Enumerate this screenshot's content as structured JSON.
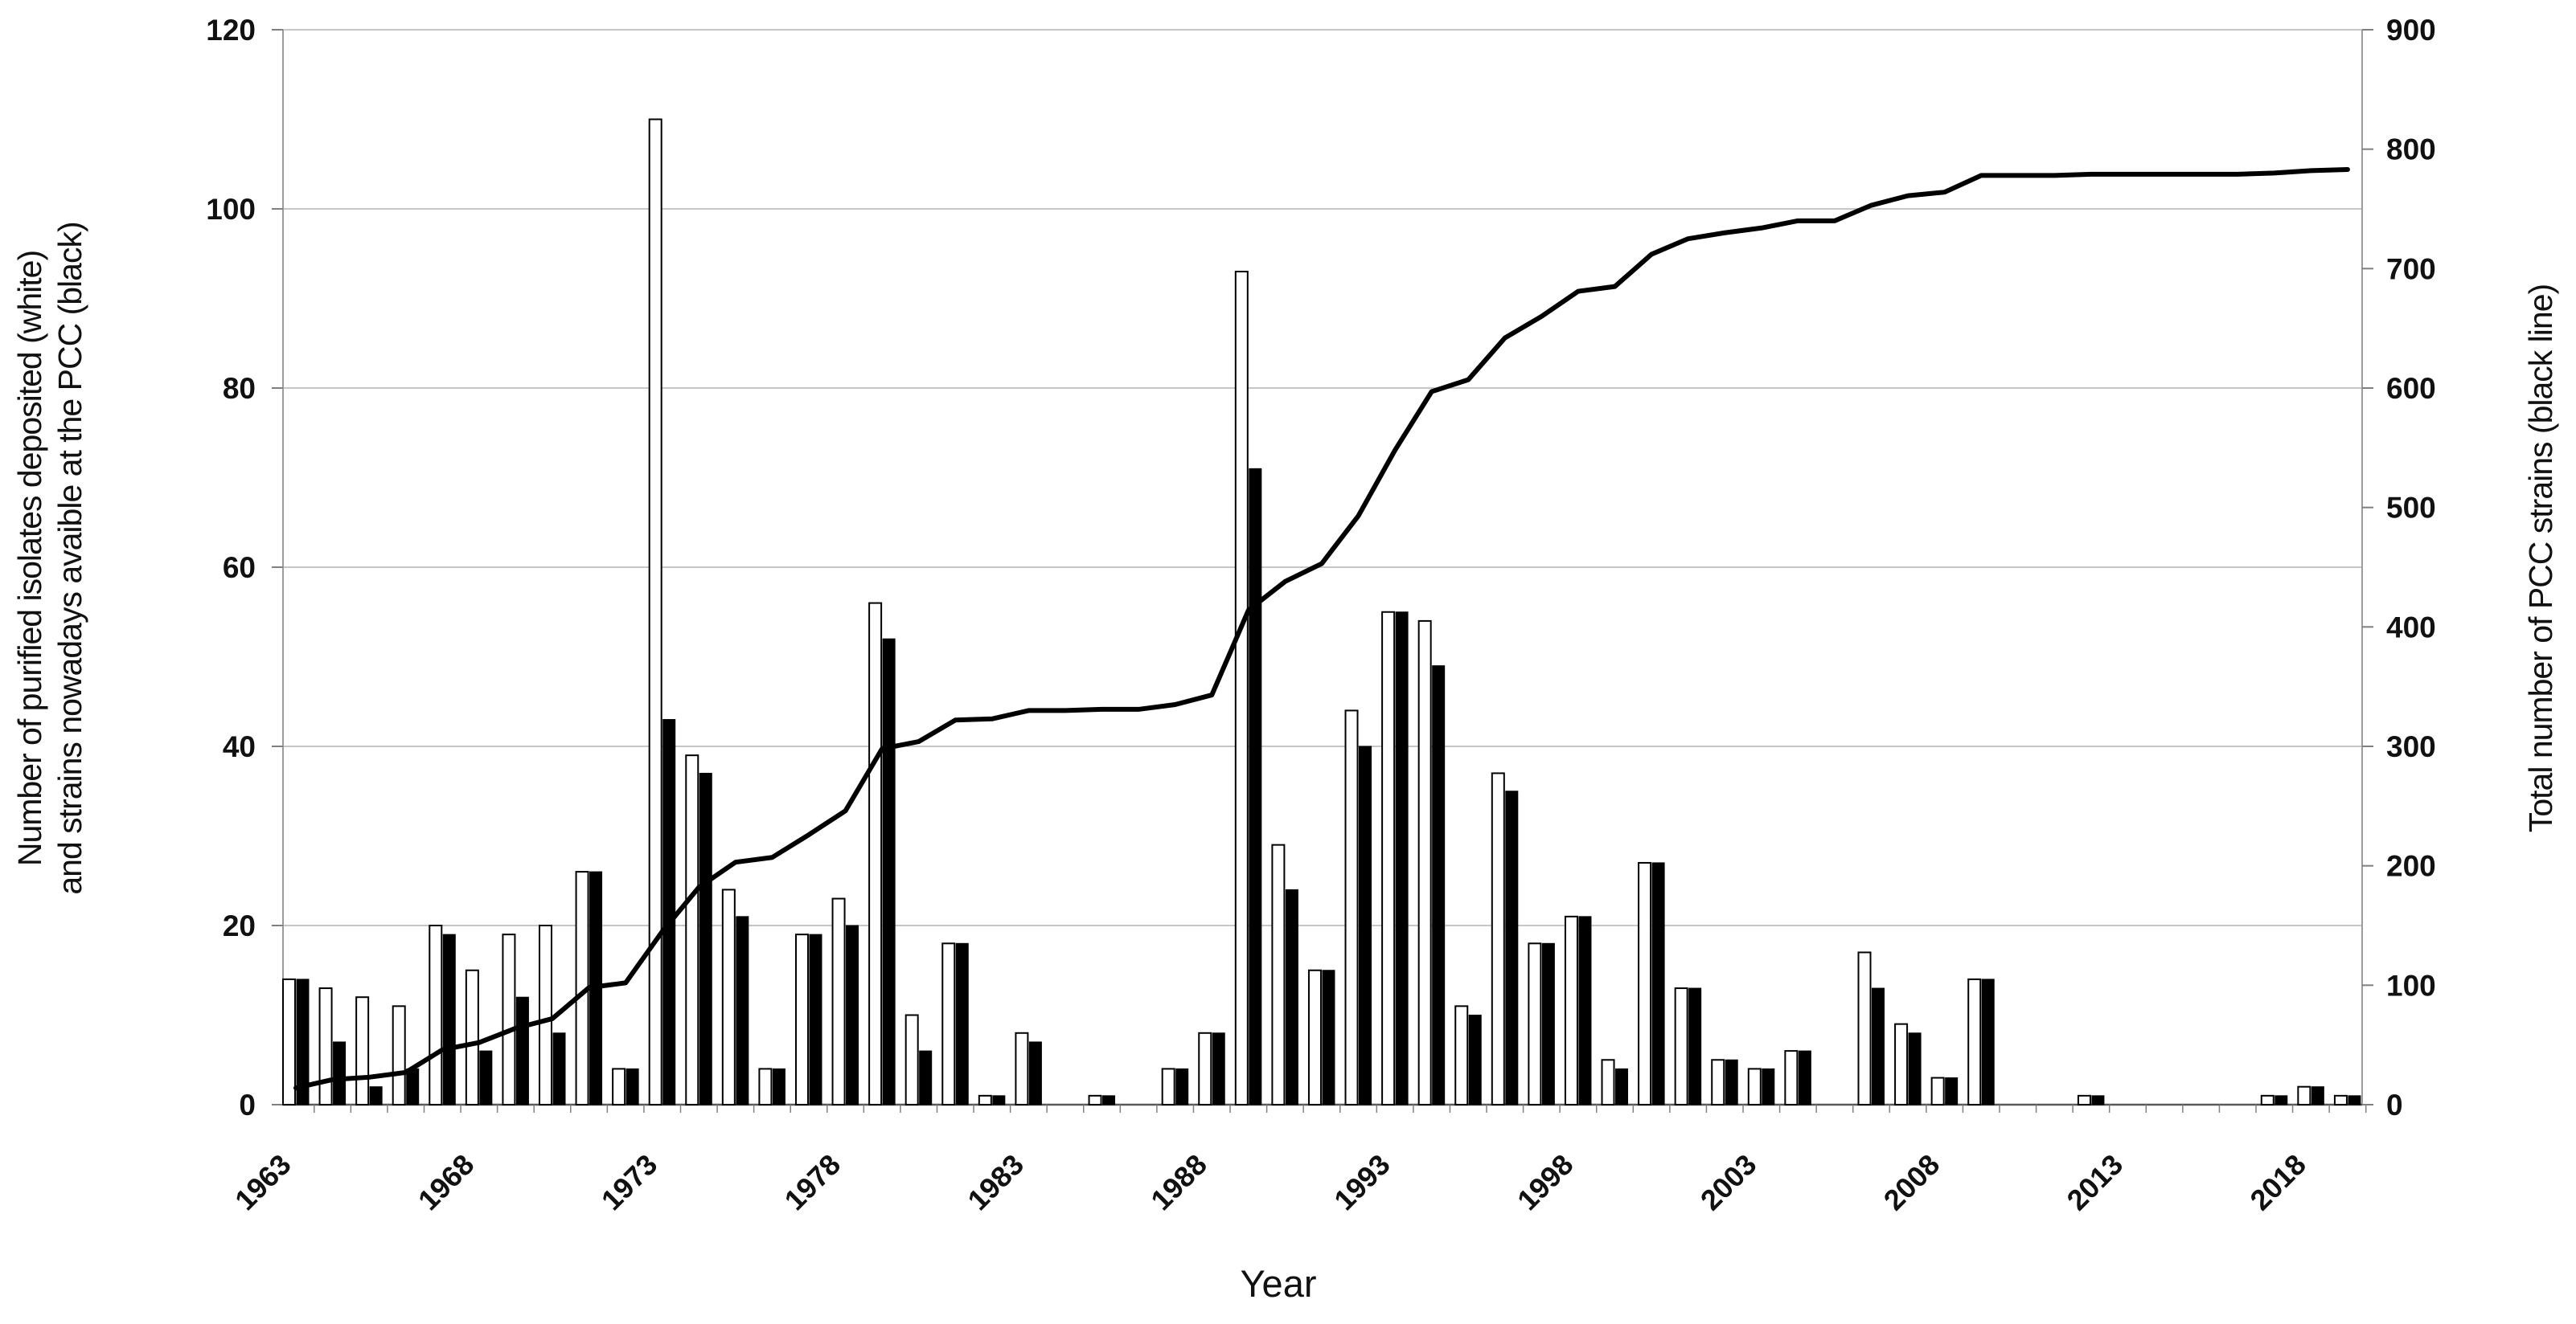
{
  "chart_data": {
    "type": "bar+line",
    "xlabel": "Year",
    "ylabel_left_line1": "Number of purified isolates deposited (white)",
    "ylabel_left_line2": "and strains nowadays avaible at the PCC (black)",
    "ylabel_right": "Total number of PCC strains (black line)",
    "ylim_left": [
      0,
      120
    ],
    "yticks_left": [
      0,
      20,
      40,
      60,
      80,
      100,
      120
    ],
    "ylim_right": [
      0,
      900
    ],
    "yticks_right": [
      0,
      100,
      200,
      300,
      400,
      500,
      600,
      700,
      800,
      900
    ],
    "x_tick_labels": [
      "1963",
      "1968",
      "1973",
      "1978",
      "1983",
      "1988",
      "1993",
      "1998",
      "2003",
      "2008",
      "2013",
      "2018"
    ],
    "grid": "horizontal-only",
    "legend": "encoded-in-axis-titles",
    "years": [
      1963,
      1964,
      1965,
      1966,
      1967,
      1968,
      1969,
      1970,
      1971,
      1972,
      1973,
      1974,
      1975,
      1976,
      1977,
      1978,
      1979,
      1980,
      1981,
      1982,
      1983,
      1984,
      1985,
      1986,
      1987,
      1988,
      1989,
      1990,
      1991,
      1992,
      1993,
      1994,
      1995,
      1996,
      1997,
      1998,
      1999,
      2000,
      2001,
      2002,
      2003,
      2004,
      2005,
      2006,
      2007,
      2008,
      2009,
      2010,
      2011,
      2012,
      2013,
      2014,
      2015,
      2016,
      2017,
      2018,
      2019
    ],
    "series": [
      {
        "name": "Purified isolates deposited",
        "style": "white-bar",
        "axis": "left",
        "values": [
          14,
          13,
          12,
          11,
          20,
          15,
          19,
          20,
          26,
          4,
          110,
          39,
          24,
          4,
          19,
          23,
          56,
          10,
          18,
          1,
          8,
          0,
          1,
          0,
          4,
          8,
          93,
          29,
          15,
          44,
          55,
          54,
          11,
          37,
          18,
          21,
          5,
          27,
          13,
          5,
          4,
          6,
          0,
          17,
          9,
          3,
          14,
          0,
          0,
          1,
          0,
          0,
          0,
          0,
          1,
          2,
          1
        ]
      },
      {
        "name": "Strains nowadays available at the PCC",
        "style": "black-bar",
        "axis": "left",
        "values": [
          14,
          7,
          2,
          4,
          19,
          6,
          12,
          8,
          26,
          4,
          43,
          37,
          21,
          4,
          19,
          20,
          52,
          6,
          18,
          1,
          7,
          0,
          1,
          0,
          4,
          8,
          71,
          24,
          15,
          40,
          55,
          49,
          10,
          35,
          18,
          21,
          4,
          27,
          13,
          5,
          4,
          6,
          0,
          13,
          8,
          3,
          14,
          0,
          0,
          1,
          0,
          0,
          0,
          0,
          1,
          2,
          1
        ]
      },
      {
        "name": "Total number of PCC strains",
        "style": "black-line",
        "axis": "right",
        "values": [
          14,
          21,
          23,
          27,
          46,
          52,
          64,
          72,
          98,
          102,
          145,
          182,
          203,
          207,
          226,
          246,
          298,
          304,
          322,
          323,
          330,
          330,
          331,
          331,
          335,
          343,
          414,
          438,
          453,
          493,
          548,
          597,
          607,
          642,
          660,
          681,
          685,
          712,
          725,
          730,
          734,
          740,
          740,
          753,
          761,
          764,
          778,
          778,
          778,
          779,
          779,
          779,
          779,
          779,
          780,
          782,
          783
        ]
      }
    ],
    "colors": {
      "bar_white_fill": "#ffffff",
      "bar_black_fill": "#000000",
      "bar_stroke": "#000000",
      "line": "#000000",
      "grid": "#b3b3b3",
      "axis": "#9c9c9c",
      "zero_axis": "#595959",
      "tick": "#808080",
      "text": "#111111"
    }
  }
}
